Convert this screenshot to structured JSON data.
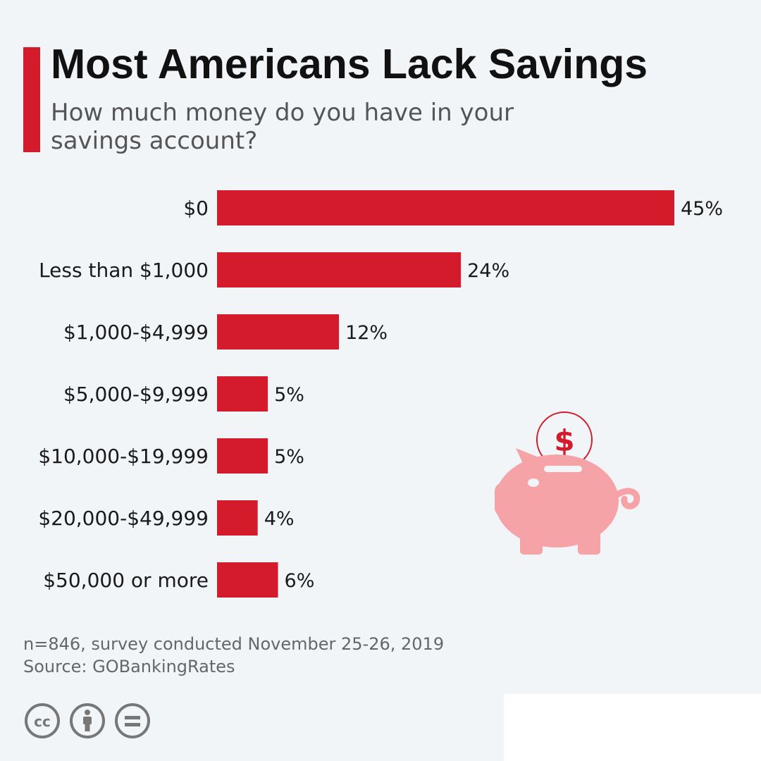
{
  "title": "Most Americans Lack Savings",
  "subtitle": "How much money do you have in your savings account?",
  "chart_data": {
    "type": "bar",
    "orientation": "horizontal",
    "categories": [
      "$0",
      "Less than $1,000",
      "$1,000-$4,999",
      "$5,000-$9,999",
      "$10,000-$19,999",
      "$20,000-$49,999",
      "$50,000 or more"
    ],
    "values": [
      45,
      24,
      12,
      5,
      5,
      4,
      6
    ],
    "value_labels": [
      "45%",
      "24%",
      "12%",
      "5%",
      "5%",
      "4%",
      "6%"
    ],
    "unit": "%",
    "xlim": [
      0,
      45
    ],
    "grid": false,
    "color": "#d31b2b"
  },
  "footer": {
    "note": "n=846, survey conducted November 25-26, 2019",
    "source": "Source: GOBankingRates"
  },
  "colors": {
    "accent": "#d31b2b",
    "background": "#f2f5f8",
    "illustration": "#f6a3a8"
  },
  "icons": [
    "piggy-bank-icon",
    "dollar-coin-icon",
    "creative-commons-icon",
    "attribution-icon",
    "no-derivatives-icon"
  ]
}
